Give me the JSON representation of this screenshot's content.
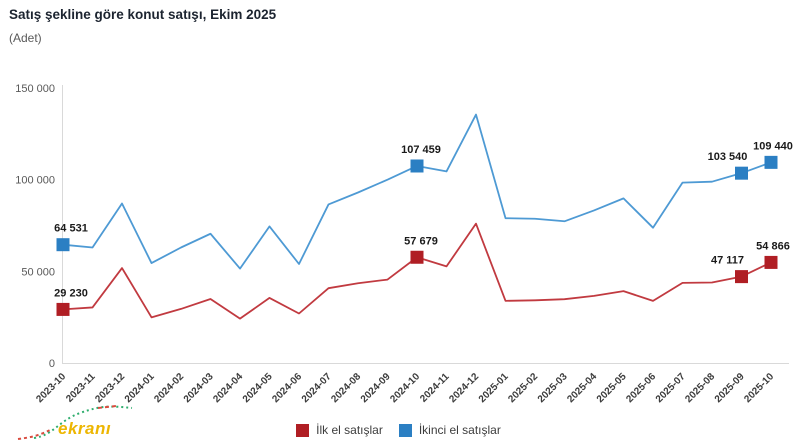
{
  "header": {
    "title": "Satış şekline göre konut satışı, Ekim 2025",
    "subtitle": "(Adet)"
  },
  "watermark": {
    "text": "ekranı",
    "color": "#edb602"
  },
  "legend": [
    {
      "label": "İlk el satışlar",
      "color": "#b01e24"
    },
    {
      "label": "İkinci el satışlar",
      "color": "#2b7fc3"
    }
  ],
  "chart_data": {
    "type": "line",
    "title": "Satış şekline göre konut satışı, Ekim 2025",
    "subtitle": "(Adet)",
    "xlabel": "",
    "ylabel": "",
    "ylim": [
      0,
      150000
    ],
    "grid": false,
    "legend_position": "bottom-center",
    "yticks": [
      {
        "value": 0,
        "label": "0"
      },
      {
        "value": 50000,
        "label": "50 000"
      },
      {
        "value": 100000,
        "label": "100 000"
      },
      {
        "value": 150000,
        "label": "150 000"
      }
    ],
    "categories": [
      "2023-10",
      "2023-11",
      "2023-12",
      "2024-01",
      "2024-02",
      "2024-03",
      "2024-04",
      "2024-05",
      "2024-06",
      "2024-07",
      "2024-08",
      "2024-09",
      "2024-10",
      "2024-11",
      "2024-12",
      "2025-01",
      "2025-02",
      "2025-03",
      "2025-04",
      "2025-05",
      "2025-06",
      "2025-07",
      "2025-08",
      "2025-09",
      "2025-10"
    ],
    "series": [
      {
        "name": "İkinci el satışlar",
        "line_color": "#4e9ad4",
        "marker_color": "#2b7fc3",
        "values": [
          64531,
          63000,
          87000,
          54500,
          63000,
          70500,
          51500,
          74500,
          54000,
          86500,
          93000,
          100000,
          107459,
          104500,
          135500,
          79000,
          78700,
          77300,
          83200,
          89800,
          73800,
          98400,
          98900,
          103540,
          109440
        ],
        "labeled_points": [
          {
            "index": 0,
            "label": "64 531"
          },
          {
            "index": 12,
            "label": "107 459"
          },
          {
            "index": 23,
            "label": "103 540"
          },
          {
            "index": 24,
            "label": "109 440"
          }
        ]
      },
      {
        "name": "İlk el satışlar",
        "line_color": "#c13a40",
        "marker_color": "#b01e24",
        "values": [
          29230,
          30300,
          51800,
          24900,
          29500,
          34900,
          24200,
          35500,
          27000,
          40800,
          43500,
          45500,
          57679,
          52700,
          76000,
          33900,
          34200,
          34800,
          36600,
          39200,
          33900,
          43700,
          43900,
          47117,
          54866
        ],
        "labeled_points": [
          {
            "index": 0,
            "label": "29 230"
          },
          {
            "index": 12,
            "label": "57 679"
          },
          {
            "index": 23,
            "label": "47 117"
          },
          {
            "index": 24,
            "label": "54 866"
          }
        ]
      }
    ]
  }
}
